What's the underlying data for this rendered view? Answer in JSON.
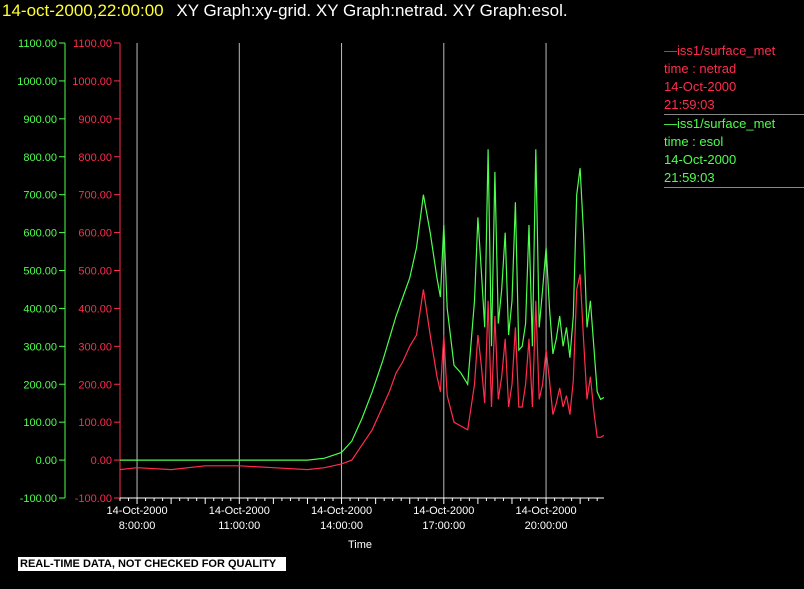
{
  "header": {
    "time": "14-oct-2000,22:00:00",
    "graphs": "XY Graph:xy-grid.  XY Graph:netrad.  XY Graph:esol."
  },
  "legend": [
    {
      "label": "—iss1/surface_met",
      "field": "time : netrad",
      "date": "14-Oct-2000",
      "time": "21:59:03",
      "color": "#ff2d4d"
    },
    {
      "label": "—iss1/surface_met",
      "field": "time : esol",
      "date": "14-Oct-2000",
      "time": "21:59:03",
      "color": "#4dff4d"
    }
  ],
  "footer": {
    "note": "REAL-TIME DATA, NOT CHECKED FOR QUALITY"
  },
  "chart_data": {
    "type": "line",
    "xlabel": "Time",
    "ylabel": "",
    "ylim": [
      -100,
      1100
    ],
    "xlim_hours": [
      7.5,
      21.7
    ],
    "grid": "vertical",
    "y_ticks": [
      "-100.00",
      "0.00",
      "100.00",
      "200.00",
      "300.00",
      "400.00",
      "500.00",
      "600.00",
      "700.00",
      "800.00",
      "900.00",
      "1000.00",
      "1100.00"
    ],
    "x_ticks": [
      {
        "hour": 8,
        "date": "14-Oct-2000",
        "time": "8:00:00"
      },
      {
        "hour": 11,
        "date": "14-Oct-2000",
        "time": "11:00:00"
      },
      {
        "hour": 14,
        "date": "14-Oct-2000",
        "time": "14:00:00"
      },
      {
        "hour": 17,
        "date": "14-Oct-2000",
        "time": "17:00:00"
      },
      {
        "hour": 20,
        "date": "14-Oct-2000",
        "time": "20:00:00"
      }
    ],
    "series": [
      {
        "name": "time : esol",
        "color": "#4dff4d",
        "x": [
          7.5,
          8.0,
          9.0,
          10.0,
          11.0,
          12.0,
          13.0,
          13.5,
          14.0,
          14.3,
          14.6,
          14.9,
          15.2,
          15.4,
          15.6,
          15.8,
          16.0,
          16.2,
          16.4,
          16.6,
          16.8,
          16.9,
          17.0,
          17.1,
          17.3,
          17.5,
          17.7,
          17.9,
          18.0,
          18.1,
          18.2,
          18.3,
          18.4,
          18.5,
          18.6,
          18.7,
          18.8,
          18.9,
          19.0,
          19.1,
          19.2,
          19.3,
          19.4,
          19.5,
          19.6,
          19.7,
          19.8,
          19.9,
          20.0,
          20.1,
          20.2,
          20.3,
          20.4,
          20.5,
          20.6,
          20.7,
          20.8,
          20.9,
          21.0,
          21.1,
          21.2,
          21.3,
          21.4,
          21.5,
          21.6,
          21.7
        ],
        "y": [
          0,
          0,
          0,
          0,
          0,
          0,
          0,
          5,
          20,
          50,
          110,
          180,
          260,
          320,
          380,
          430,
          480,
          560,
          700,
          600,
          480,
          430,
          620,
          400,
          250,
          230,
          200,
          420,
          640,
          500,
          350,
          820,
          300,
          760,
          360,
          450,
          600,
          330,
          420,
          680,
          290,
          300,
          360,
          620,
          300,
          820,
          350,
          450,
          560,
          400,
          280,
          320,
          380,
          300,
          350,
          270,
          380,
          700,
          770,
          600,
          350,
          420,
          300,
          180,
          160,
          165
        ]
      },
      {
        "name": "time : netrad",
        "color": "#ff2d4d",
        "x": [
          7.5,
          8.0,
          9.0,
          10.0,
          11.0,
          12.0,
          13.0,
          13.5,
          14.0,
          14.3,
          14.6,
          14.9,
          15.2,
          15.4,
          15.6,
          15.8,
          16.0,
          16.2,
          16.4,
          16.6,
          16.8,
          16.9,
          17.0,
          17.1,
          17.3,
          17.5,
          17.7,
          17.9,
          18.0,
          18.1,
          18.2,
          18.3,
          18.4,
          18.5,
          18.6,
          18.7,
          18.8,
          18.9,
          19.0,
          19.1,
          19.2,
          19.3,
          19.4,
          19.5,
          19.6,
          19.7,
          19.8,
          19.9,
          20.0,
          20.1,
          20.2,
          20.3,
          20.4,
          20.5,
          20.6,
          20.7,
          20.8,
          20.9,
          21.0,
          21.1,
          21.2,
          21.3,
          21.4,
          21.5,
          21.6,
          21.7
        ],
        "y": [
          -25,
          -20,
          -25,
          -15,
          -15,
          -20,
          -25,
          -20,
          -10,
          0,
          40,
          80,
          140,
          180,
          230,
          260,
          300,
          330,
          450,
          330,
          220,
          180,
          330,
          170,
          100,
          90,
          80,
          200,
          330,
          250,
          150,
          420,
          140,
          380,
          160,
          220,
          320,
          140,
          200,
          350,
          140,
          140,
          200,
          320,
          140,
          420,
          160,
          200,
          290,
          210,
          120,
          150,
          190,
          140,
          170,
          120,
          210,
          450,
          490,
          320,
          160,
          220,
          130,
          60,
          60,
          65
        ]
      }
    ]
  }
}
